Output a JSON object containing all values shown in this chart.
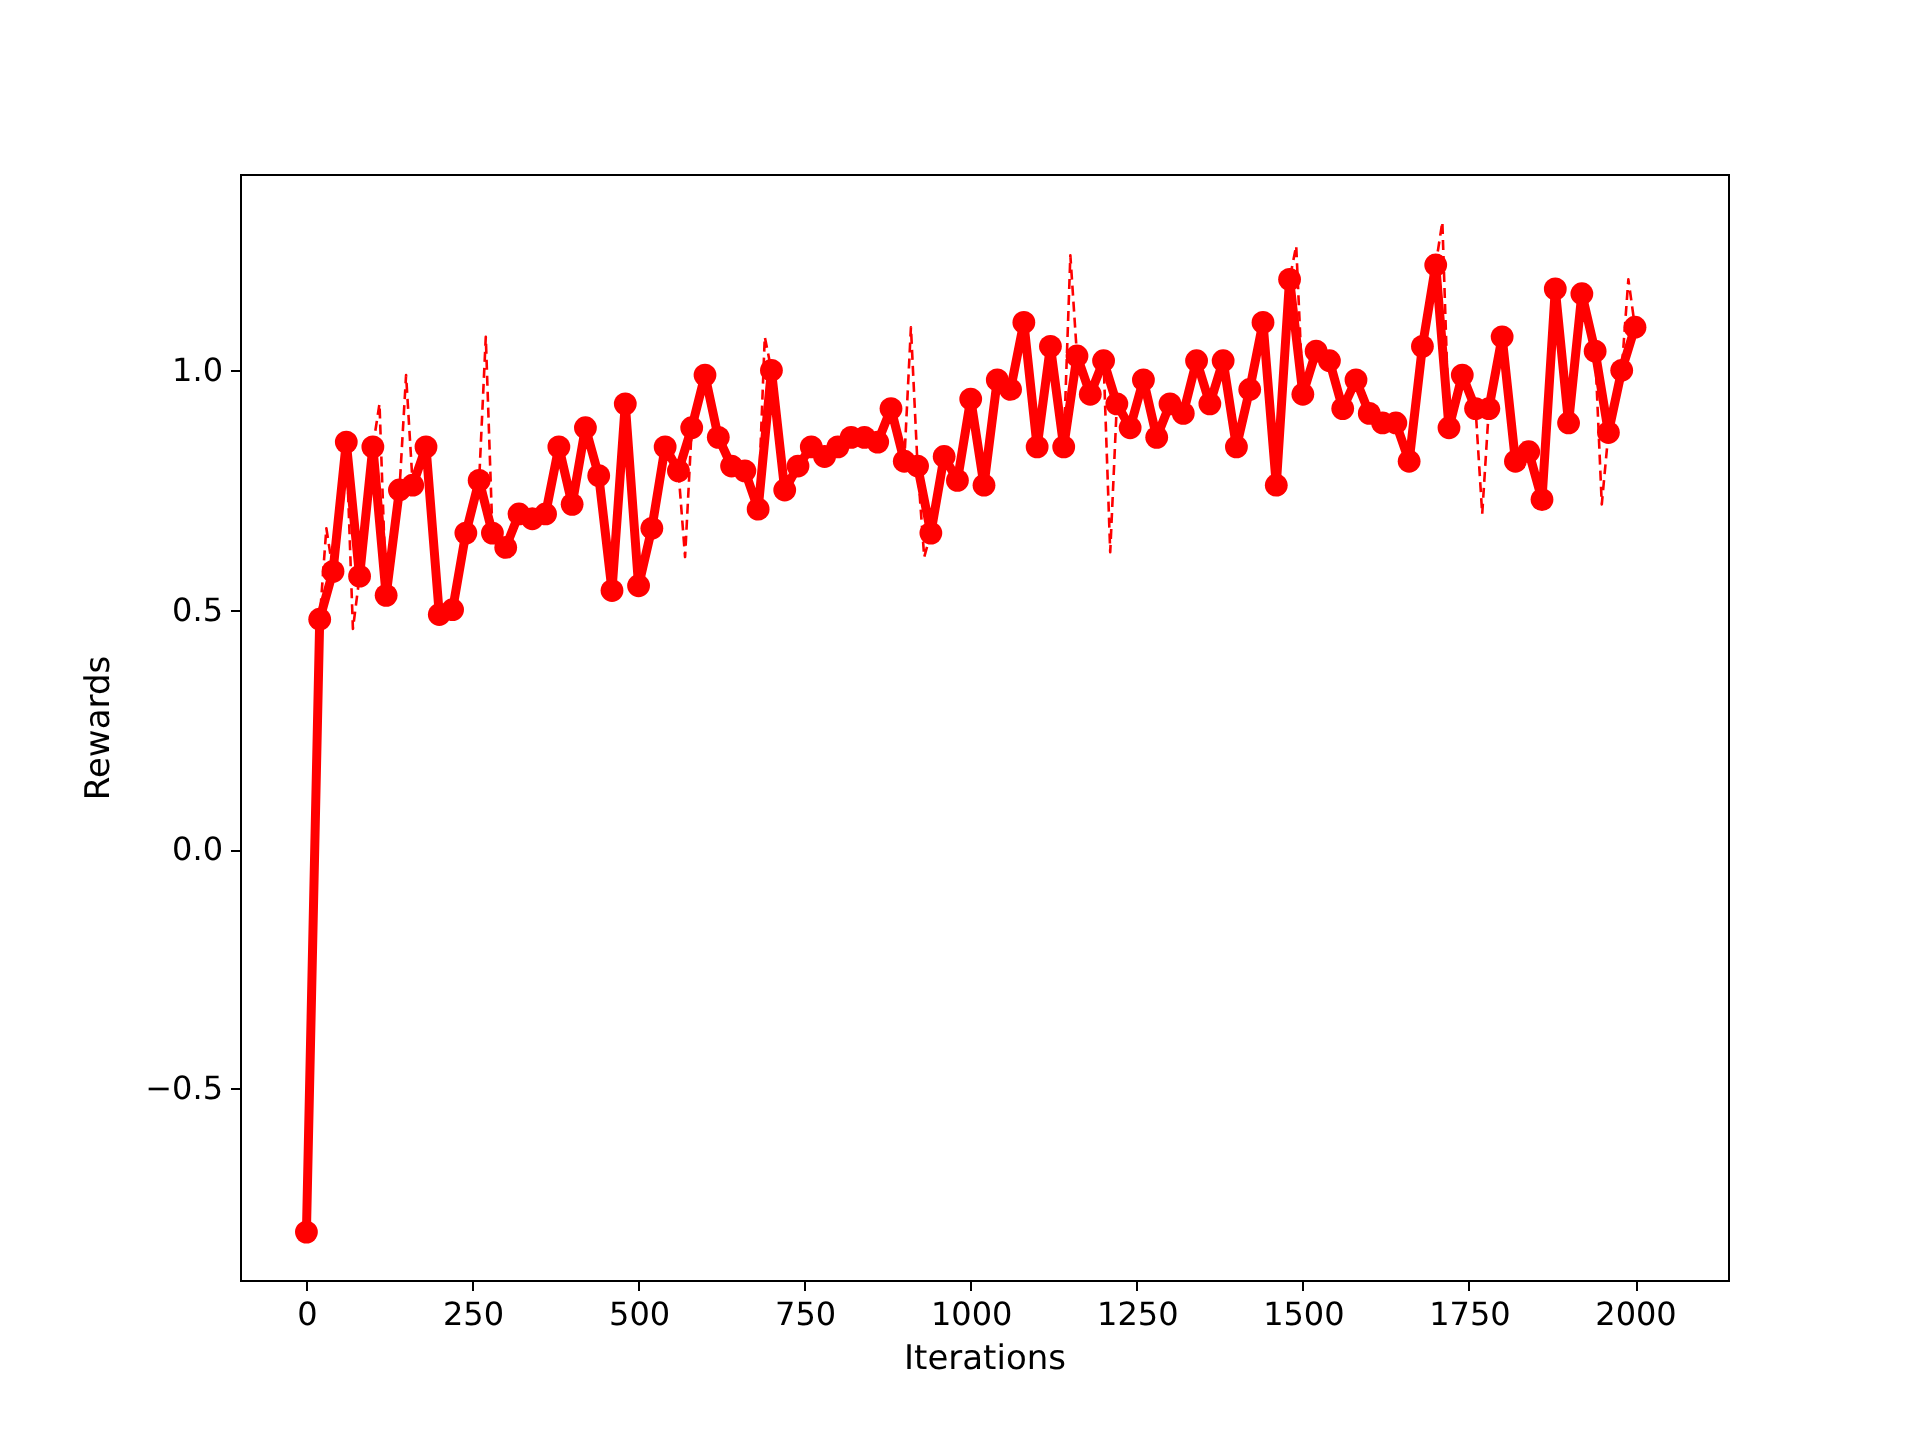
{
  "chart_data": {
    "type": "line",
    "xlabel": "Iterations",
    "ylabel": "Rewards",
    "xlim": [
      -100,
      2140
    ],
    "ylim": [
      -0.9,
      1.41
    ],
    "xticks": [
      0,
      250,
      500,
      750,
      1000,
      1250,
      1500,
      1750,
      2000
    ],
    "yticks": [
      {
        "value": -0.5,
        "label": "−0.5"
      },
      {
        "value": 0,
        "label": "0.0"
      },
      {
        "value": 0.5,
        "label": "0.5"
      },
      {
        "value": 1,
        "label": "1.0"
      }
    ],
    "series": [
      {
        "color": "#ff0000",
        "line_style": "solid",
        "marker": "circle",
        "x": [
          0,
          20,
          40,
          60,
          80,
          100,
          120,
          140,
          160,
          180,
          200,
          220,
          240,
          260,
          280,
          300,
          320,
          340,
          360,
          380,
          400,
          420,
          440,
          460,
          480,
          500,
          520,
          540,
          560,
          580,
          600,
          620,
          640,
          660,
          680,
          700,
          720,
          740,
          760,
          780,
          800,
          820,
          840,
          860,
          880,
          900,
          920,
          940,
          960,
          980,
          1000,
          1020,
          1040,
          1060,
          1080,
          1100,
          1120,
          1140,
          1160,
          1180,
          1200,
          1220,
          1240,
          1260,
          1280,
          1300,
          1320,
          1340,
          1360,
          1380,
          1400,
          1420,
          1440,
          1460,
          1480,
          1500,
          1520,
          1540,
          1560,
          1580,
          1600,
          1620,
          1640,
          1660,
          1680,
          1700,
          1720,
          1740,
          1760,
          1780,
          1800,
          1820,
          1840,
          1860,
          1880,
          1900,
          1920,
          1940,
          1960,
          1980,
          2000
        ],
        "values": [
          -0.8,
          0.48,
          0.58,
          0.85,
          0.57,
          0.84,
          0.53,
          0.75,
          0.76,
          0.84,
          0.49,
          0.5,
          0.66,
          0.77,
          0.66,
          0.63,
          0.7,
          0.69,
          0.7,
          0.84,
          0.72,
          0.88,
          0.78,
          0.54,
          0.93,
          0.55,
          0.67,
          0.84,
          0.79,
          0.88,
          0.99,
          0.86,
          0.8,
          0.79,
          0.71,
          1.0,
          0.75,
          0.8,
          0.84,
          0.82,
          0.84,
          0.86,
          0.86,
          0.85,
          0.92,
          0.81,
          0.8,
          0.66,
          0.82,
          0.77,
          0.94,
          0.76,
          0.98,
          0.96,
          1.1,
          0.84,
          1.05,
          0.84,
          1.03,
          0.95,
          1.02,
          0.93,
          0.88,
          0.98,
          0.86,
          0.93,
          0.91,
          1.02,
          0.93,
          1.02,
          0.84,
          0.96,
          1.1,
          0.76,
          1.19,
          0.95,
          1.04,
          1.02,
          0.92,
          0.98,
          0.91,
          0.89,
          0.89,
          0.81,
          1.05,
          1.22,
          0.88,
          0.99,
          0.92,
          0.92,
          1.07,
          0.81,
          0.83,
          0.73,
          1.17,
          0.89,
          1.16,
          1.04,
          0.87,
          1.0,
          1.09
        ]
      },
      {
        "color": "#ff0000",
        "line_style": "dashed",
        "marker": "none",
        "x": [
          0,
          20,
          30,
          40,
          60,
          70,
          80,
          100,
          110,
          120,
          140,
          150,
          160,
          180,
          200,
          220,
          240,
          260,
          270,
          280,
          300,
          320,
          340,
          360,
          380,
          400,
          420,
          440,
          460,
          480,
          500,
          520,
          540,
          560,
          570,
          580,
          600,
          620,
          640,
          660,
          680,
          690,
          700,
          720,
          740,
          760,
          780,
          800,
          820,
          840,
          860,
          880,
          900,
          910,
          920,
          930,
          940,
          960,
          980,
          1000,
          1020,
          1040,
          1060,
          1080,
          1100,
          1120,
          1140,
          1150,
          1160,
          1180,
          1200,
          1210,
          1220,
          1240,
          1260,
          1280,
          1300,
          1320,
          1340,
          1360,
          1380,
          1400,
          1420,
          1440,
          1460,
          1480,
          1490,
          1500,
          1520,
          1540,
          1560,
          1580,
          1600,
          1620,
          1640,
          1660,
          1680,
          1700,
          1710,
          1720,
          1740,
          1760,
          1770,
          1780,
          1800,
          1820,
          1840,
          1860,
          1880,
          1900,
          1920,
          1940,
          1950,
          1960,
          1980,
          1990,
          2000
        ],
        "values": [
          -0.8,
          0.48,
          0.67,
          0.58,
          0.85,
          0.46,
          0.57,
          0.84,
          0.93,
          0.53,
          0.75,
          0.99,
          0.76,
          0.84,
          0.49,
          0.5,
          0.66,
          0.77,
          1.07,
          0.66,
          0.63,
          0.7,
          0.69,
          0.7,
          0.84,
          0.72,
          0.88,
          0.78,
          0.54,
          0.93,
          0.55,
          0.67,
          0.84,
          0.79,
          0.61,
          0.88,
          0.99,
          0.86,
          0.8,
          0.79,
          0.71,
          1.07,
          1.0,
          0.75,
          0.8,
          0.84,
          0.82,
          0.84,
          0.86,
          0.86,
          0.85,
          0.92,
          0.81,
          1.09,
          0.8,
          0.61,
          0.66,
          0.82,
          0.77,
          0.94,
          0.76,
          0.98,
          0.96,
          1.1,
          0.84,
          1.05,
          0.84,
          1.24,
          1.03,
          0.95,
          1.02,
          0.62,
          0.93,
          0.88,
          0.98,
          0.86,
          0.93,
          0.91,
          1.02,
          0.93,
          1.02,
          0.84,
          0.96,
          1.1,
          0.76,
          1.19,
          1.26,
          0.95,
          1.04,
          1.02,
          0.92,
          0.98,
          0.91,
          0.89,
          0.89,
          0.81,
          1.05,
          1.22,
          1.31,
          0.88,
          0.99,
          0.92,
          0.7,
          0.92,
          1.07,
          0.81,
          0.83,
          0.73,
          1.17,
          0.89,
          1.16,
          1.04,
          0.72,
          0.87,
          1.0,
          1.19,
          1.09
        ]
      }
    ]
  }
}
